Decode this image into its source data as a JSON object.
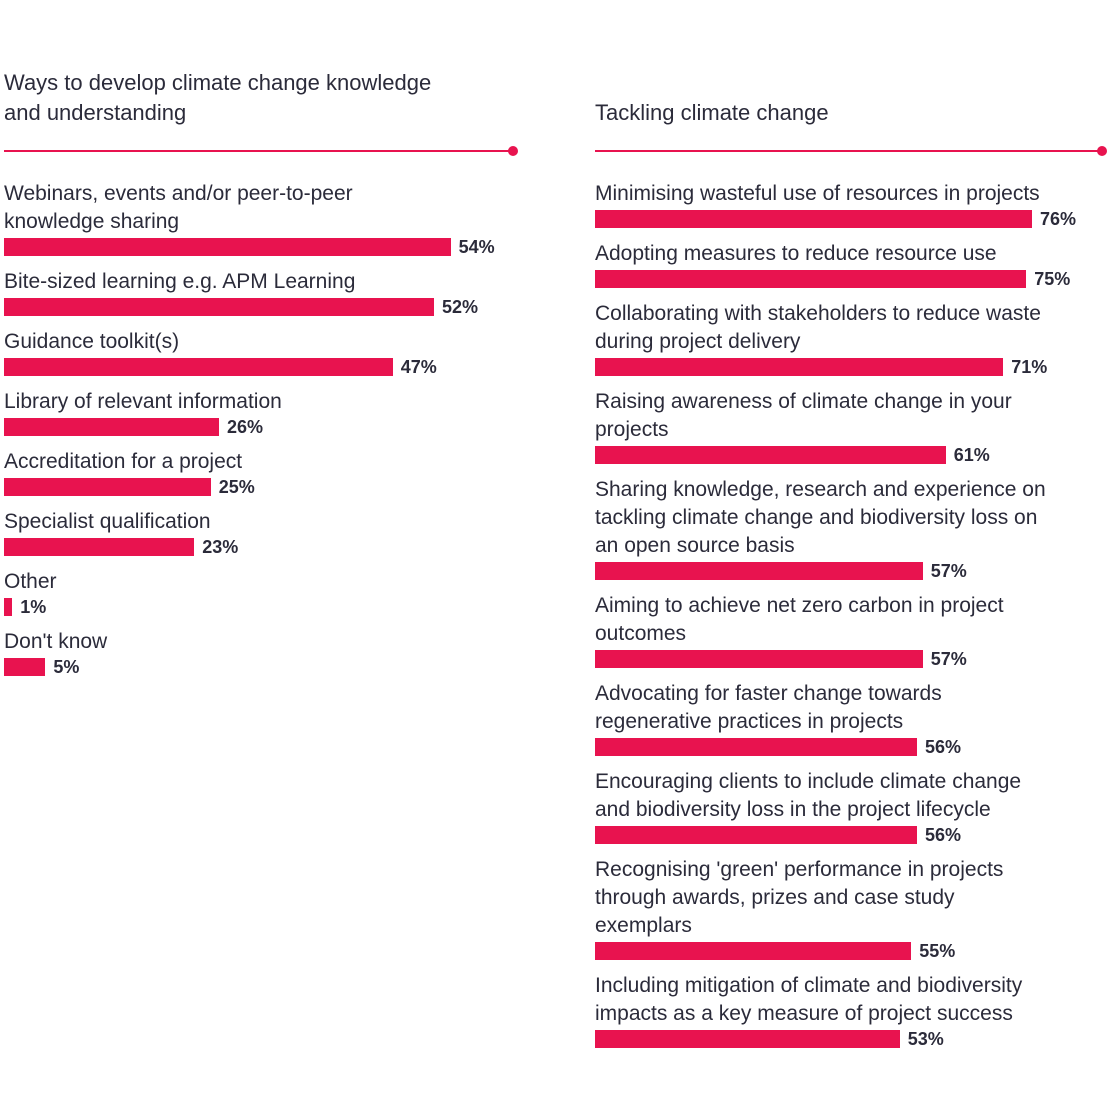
{
  "chart_data": [
    {
      "type": "bar",
      "orientation": "horizontal",
      "title": "Ways to develop climate change knowledge and understanding",
      "categories": [
        "Webinars, events and/or peer-to-peer knowledge sharing",
        "Bite-sized learning e.g. APM Learning",
        "Guidance toolkit(s)",
        "Library of relevant information",
        "Accreditation for a project",
        "Specialist qualification",
        "Other",
        "Don't know"
      ],
      "values": [
        54,
        52,
        47,
        26,
        25,
        23,
        1,
        5
      ],
      "value_labels": [
        "54%",
        "52%",
        "47%",
        "26%",
        "25%",
        "23%",
        "1%",
        "5%"
      ],
      "unit": "%",
      "xlim": [
        0,
        100
      ],
      "bar_color": "#e8134f"
    },
    {
      "type": "bar",
      "orientation": "horizontal",
      "title": "Tackling climate change",
      "categories": [
        "Minimising wasteful use of resources in projects",
        "Adopting measures to reduce resource use",
        "Collaborating with stakeholders to reduce waste during project delivery",
        "Raising awareness of climate change in your projects",
        "Sharing knowledge, research and experience on tackling climate change and biodiversity loss on an open source basis",
        "Aiming to achieve net zero carbon in project outcomes",
        "Advocating for faster change towards regenerative practices in projects",
        "Encouraging clients to include climate change and biodiversity loss in the project lifecycle",
        "Recognising 'green' performance in projects through awards, prizes and case study exemplars",
        "Including mitigation of climate and biodiversity impacts as a key measure of project success"
      ],
      "values": [
        76,
        75,
        71,
        61,
        57,
        57,
        56,
        56,
        55,
        53
      ],
      "value_labels": [
        "76%",
        "75%",
        "71%",
        "61%",
        "57%",
        "57%",
        "56%",
        "56%",
        "55%",
        "53%"
      ],
      "unit": "%",
      "xlim": [
        0,
        100
      ],
      "bar_color": "#e8134f"
    }
  ]
}
